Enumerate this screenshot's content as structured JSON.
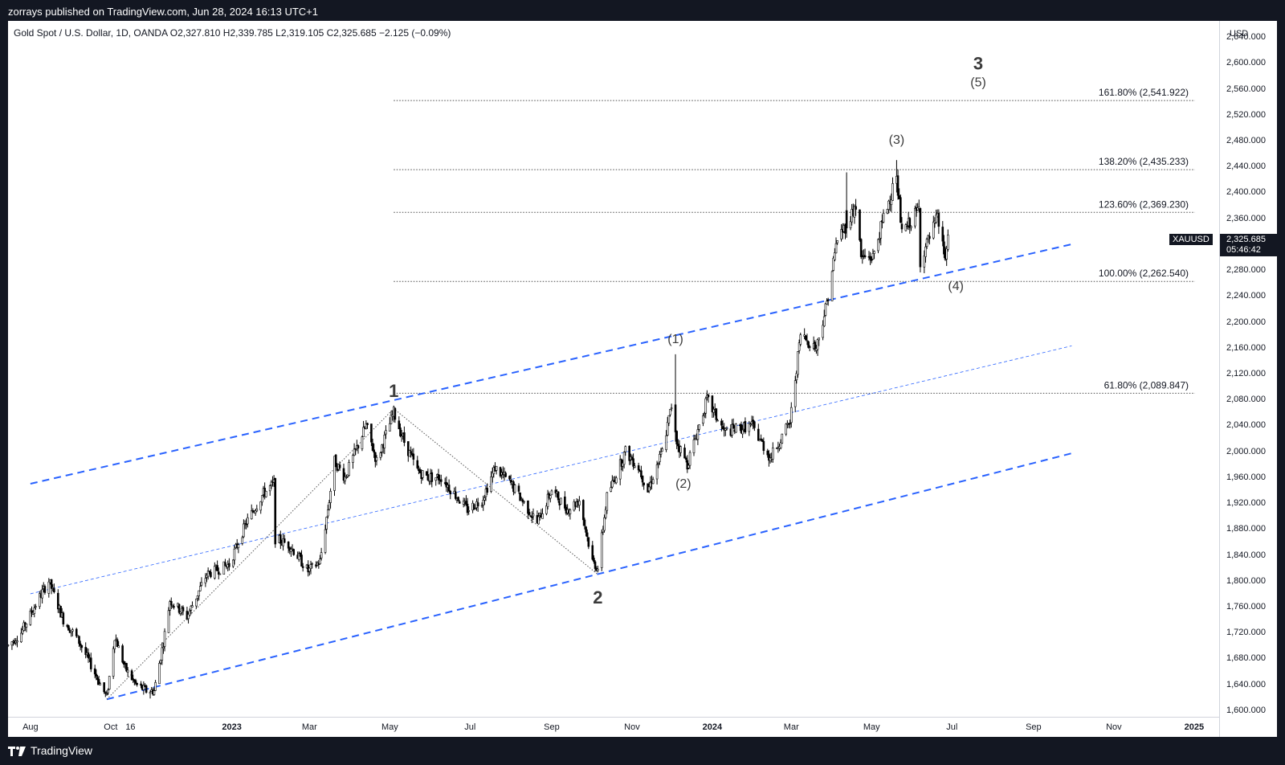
{
  "header": {
    "publisher_text": "zorrays published on TradingView.com, Jun 28, 2024 16:13 UTC+1"
  },
  "legend": {
    "text": "Gold Spot / U.S. Dollar, 1D, OANDA  O2,327.810  H2,339.785  L2,319.105  C2,325.685  −2.125 (−0.09%)"
  },
  "price_axis": {
    "currency": "USD",
    "current_price": "2,325.685",
    "countdown": "05:46:42",
    "symbol": "XAUUSD"
  },
  "footer": {
    "brand": "TradingView"
  },
  "chart_data": {
    "type": "candlestick",
    "symbol": "XAUUSD",
    "timeframe": "1D",
    "ylim": [
      1590,
      2665
    ],
    "y_ticks": [
      1600,
      1640,
      1680,
      1720,
      1760,
      1800,
      1840,
      1880,
      1920,
      1960,
      2000,
      2040,
      2080,
      2120,
      2160,
      2200,
      2240,
      2280,
      2320,
      2360,
      2400,
      2440,
      2480,
      2520,
      2560,
      2600,
      2640
    ],
    "y_tick_labels": [
      "1,600.000",
      "1,640.000",
      "1,680.000",
      "1,720.000",
      "1,760.000",
      "1,800.000",
      "1,840.000",
      "1,880.000",
      "1,920.000",
      "1,960.000",
      "2,000.000",
      "2,040.000",
      "2,080.000",
      "2,120.000",
      "2,160.000",
      "2,200.000",
      "2,240.000",
      "2,280.000",
      "2,320.000",
      "2,360.000",
      "2,400.000",
      "2,440.000",
      "2,480.000",
      "2,520.000",
      "2,560.000",
      "2,600.000",
      "2,640.000"
    ],
    "x_range": [
      "2022-07-15",
      "2025-01-20"
    ],
    "x_ticks": [
      {
        "date": "2022-08-01",
        "label": "Aug",
        "bold": false
      },
      {
        "date": "2022-10-01",
        "label": "Oct",
        "bold": false
      },
      {
        "date": "2022-10-16",
        "label": "16",
        "bold": false
      },
      {
        "date": "2023-01-01",
        "label": "2023",
        "bold": true
      },
      {
        "date": "2023-03-01",
        "label": "Mar",
        "bold": false
      },
      {
        "date": "2023-05-01",
        "label": "May",
        "bold": false
      },
      {
        "date": "2023-07-01",
        "label": "Jul",
        "bold": false
      },
      {
        "date": "2023-09-01",
        "label": "Sep",
        "bold": false
      },
      {
        "date": "2023-11-01",
        "label": "Nov",
        "bold": false
      },
      {
        "date": "2024-01-01",
        "label": "2024",
        "bold": true
      },
      {
        "date": "2024-03-01",
        "label": "Mar",
        "bold": false
      },
      {
        "date": "2024-05-01",
        "label": "May",
        "bold": false
      },
      {
        "date": "2024-07-01",
        "label": "Jul",
        "bold": false
      },
      {
        "date": "2024-09-01",
        "label": "Sep",
        "bold": false
      },
      {
        "date": "2024-11-01",
        "label": "Nov",
        "bold": false
      },
      {
        "date": "2025-01-01",
        "label": "2025",
        "bold": true
      }
    ],
    "price_path": [
      [
        "2022-07-15",
        1700
      ],
      [
        "2022-07-25",
        1720
      ],
      [
        "2022-08-08",
        1775
      ],
      [
        "2022-08-15",
        1800
      ],
      [
        "2022-08-26",
        1740
      ],
      [
        "2022-09-06",
        1710
      ],
      [
        "2022-09-16",
        1670
      ],
      [
        "2022-09-28",
        1620
      ],
      [
        "2022-10-04",
        1715
      ],
      [
        "2022-10-12",
        1665
      ],
      [
        "2022-10-20",
        1640
      ],
      [
        "2022-10-28",
        1630
      ],
      [
        "2022-11-03",
        1630
      ],
      [
        "2022-11-10",
        1705
      ],
      [
        "2022-11-15",
        1770
      ],
      [
        "2022-11-28",
        1745
      ],
      [
        "2022-12-13",
        1810
      ],
      [
        "2022-12-30",
        1825
      ],
      [
        "2023-01-12",
        1890
      ],
      [
        "2023-01-25",
        1935
      ],
      [
        "2023-02-02",
        1950
      ],
      [
        "2023-02-03",
        1865
      ],
      [
        "2023-02-14",
        1855
      ],
      [
        "2023-02-28",
        1815
      ],
      [
        "2023-03-09",
        1830
      ],
      [
        "2023-03-16",
        1925
      ],
      [
        "2023-03-20",
        1985
      ],
      [
        "2023-03-28",
        1960
      ],
      [
        "2023-04-13",
        2040
      ],
      [
        "2023-04-21",
        1985
      ],
      [
        "2023-05-04",
        2060
      ],
      [
        "2023-05-12",
        2015
      ],
      [
        "2023-05-22",
        1970
      ],
      [
        "2023-05-30",
        1960
      ],
      [
        "2023-06-09",
        1960
      ],
      [
        "2023-06-23",
        1925
      ],
      [
        "2023-06-29",
        1910
      ],
      [
        "2023-07-10",
        1925
      ],
      [
        "2023-07-20",
        1975
      ],
      [
        "2023-08-01",
        1950
      ],
      [
        "2023-08-21",
        1890
      ],
      [
        "2023-09-01",
        1940
      ],
      [
        "2023-09-13",
        1910
      ],
      [
        "2023-09-22",
        1925
      ],
      [
        "2023-10-02",
        1830
      ],
      [
        "2023-10-06",
        1820
      ],
      [
        "2023-10-13",
        1930
      ],
      [
        "2023-10-27",
        2000
      ],
      [
        "2023-11-06",
        1975
      ],
      [
        "2023-11-13",
        1940
      ],
      [
        "2023-11-24",
        2000
      ],
      [
        "2023-12-01",
        2070
      ],
      [
        "2023-12-04",
        2020
      ],
      [
        "2023-12-13",
        1980
      ],
      [
        "2023-12-28",
        2080
      ],
      [
        "2024-01-10",
        2030
      ],
      [
        "2024-01-31",
        2040
      ],
      [
        "2024-02-14",
        1990
      ],
      [
        "2024-02-29",
        2045
      ],
      [
        "2024-03-08",
        2180
      ],
      [
        "2024-03-20",
        2160
      ],
      [
        "2024-03-28",
        2230
      ],
      [
        "2024-04-05",
        2330
      ],
      [
        "2024-04-12",
        2350
      ],
      [
        "2024-04-19",
        2380
      ],
      [
        "2024-04-23",
        2300
      ],
      [
        "2024-05-02",
        2300
      ],
      [
        "2024-05-10",
        2360
      ],
      [
        "2024-05-20",
        2425
      ],
      [
        "2024-05-24",
        2335
      ],
      [
        "2024-06-06",
        2375
      ],
      [
        "2024-06-07",
        2295
      ],
      [
        "2024-06-14",
        2330
      ],
      [
        "2024-06-20",
        2360
      ],
      [
        "2024-06-26",
        2298
      ],
      [
        "2024-06-28",
        2325
      ]
    ],
    "key_candles": [
      {
        "date": "2023-12-04",
        "open": 2072,
        "high": 2150,
        "low": 2015,
        "close": 2030
      },
      {
        "date": "2024-04-12",
        "open": 2372,
        "high": 2431,
        "low": 2330,
        "close": 2345
      },
      {
        "date": "2024-05-20",
        "open": 2414,
        "high": 2450,
        "low": 2400,
        "close": 2425
      }
    ],
    "channel_lines": [
      {
        "name": "upper-channel",
        "style": "dashed",
        "from": [
          "2022-08-01",
          1950
        ],
        "to": [
          "2024-09-30",
          2320
        ]
      },
      {
        "name": "middle-channel",
        "style": "thin-dashed",
        "from": [
          "2022-08-01",
          1780
        ],
        "to": [
          "2024-09-30",
          2163
        ]
      },
      {
        "name": "lower-channel",
        "style": "dashed",
        "from": [
          "2022-09-28",
          1617
        ],
        "to": [
          "2024-09-30",
          1997
        ]
      }
    ],
    "wave_path": [
      [
        "2022-09-28",
        1617
      ],
      [
        "2023-05-04",
        2066
      ],
      [
        "2023-10-06",
        1810
      ]
    ],
    "fib_levels": [
      {
        "label": "161.80% (2,541.922)",
        "price": 2541.922
      },
      {
        "label": "138.20% (2,435.233)",
        "price": 2435.233
      },
      {
        "label": "123.60% (2,369.230)",
        "price": 2369.23
      },
      {
        "label": "100.00% (2,262.540)",
        "price": 2262.54
      },
      {
        "label": "61.80% (2,089.847)",
        "price": 2089.847
      }
    ],
    "fib_start_date": "2023-05-04",
    "wave_labels": [
      {
        "text": "1",
        "date": "2023-05-04",
        "price": 2084,
        "kind": "major"
      },
      {
        "text": "2",
        "date": "2023-10-06",
        "price": 1765,
        "kind": "major"
      },
      {
        "text": "3",
        "date": "2024-07-21",
        "price": 2590,
        "kind": "major"
      },
      {
        "text": "(5)",
        "date": "2024-07-21",
        "price": 2564,
        "kind": "minor"
      },
      {
        "text": "(1)",
        "date": "2023-12-04",
        "price": 2167,
        "kind": "minor"
      },
      {
        "text": "(2)",
        "date": "2023-12-10",
        "price": 1944,
        "kind": "minor"
      },
      {
        "text": "(3)",
        "date": "2024-05-20",
        "price": 2475,
        "kind": "minor"
      },
      {
        "text": "(4)",
        "date": "2024-07-04",
        "price": 2249,
        "kind": "minor"
      }
    ],
    "colors": {
      "up_candle": "#000000",
      "channel": "#2962ff",
      "fib_line": "#4a4a4a",
      "label": "#3c3c3c"
    }
  }
}
